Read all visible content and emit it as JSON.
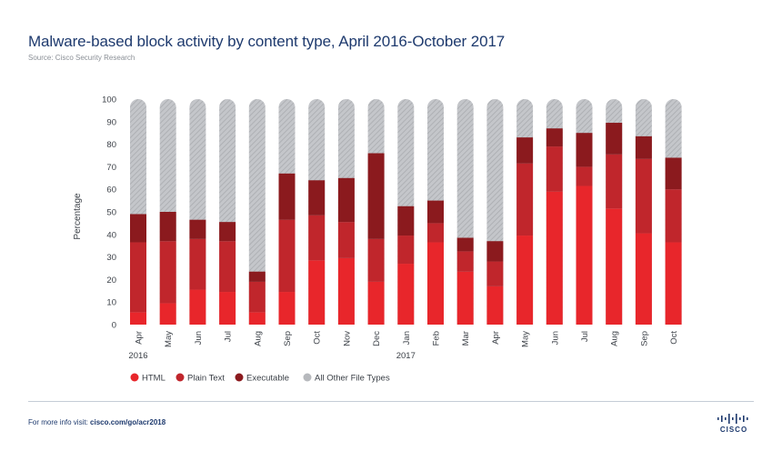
{
  "header": {
    "title": "Malware-based block activity by content type, April 2016-October 2017",
    "source": "Source: Cisco Security Research"
  },
  "footer": {
    "prefix": "For more info visit: ",
    "link": "cisco.com/go/acr2018",
    "logo_text": "CISCO"
  },
  "chart_data": {
    "type": "bar",
    "stacked": true,
    "ylabel": "Percentage",
    "ylim": [
      0,
      100
    ],
    "yticks": [
      0,
      10,
      20,
      30,
      40,
      50,
      60,
      70,
      80,
      90,
      100
    ],
    "grid": false,
    "legend_position": "bottom-left",
    "categories": [
      "Apr",
      "May",
      "Jun",
      "Jul",
      "Aug",
      "Sep",
      "Oct",
      "Nov",
      "Dec",
      "Jan",
      "Feb",
      "Mar",
      "Apr",
      "May",
      "Jun",
      "Jul",
      "Aug",
      "Sep",
      "Oct"
    ],
    "year_labels": [
      {
        "label": "2016",
        "index": 0
      },
      {
        "label": "2017",
        "index": 9
      }
    ],
    "series": [
      {
        "name": "HTML",
        "color": "#e8262b",
        "values": [
          5.5,
          9.5,
          15.5,
          14.5,
          5.5,
          14.5,
          28.5,
          29.5,
          19,
          27,
          36.5,
          23.5,
          17,
          39.5,
          59,
          61.5,
          51.5,
          40.5,
          36.5
        ]
      },
      {
        "name": "Plain Text",
        "color": "#c0262c",
        "values": [
          31,
          27.5,
          22.5,
          22.5,
          13.5,
          32,
          20,
          16,
          19,
          12.5,
          8.5,
          9,
          11,
          32,
          20,
          8.5,
          24,
          33,
          23.5
        ]
      },
      {
        "name": "Executable",
        "color": "#8b1a1e",
        "values": [
          12.5,
          13,
          8.5,
          8.5,
          4.5,
          20.5,
          15.5,
          19.5,
          38,
          13,
          10,
          6,
          9,
          11.5,
          8,
          15,
          14,
          10,
          14
        ]
      },
      {
        "name": "All Other File Types",
        "color": "#b7b9bd",
        "values": [
          51,
          50,
          53.5,
          54.5,
          76.5,
          33,
          36,
          35,
          24,
          47.5,
          45,
          61.5,
          63,
          17,
          13,
          15,
          10.5,
          16.5,
          26
        ]
      }
    ]
  }
}
